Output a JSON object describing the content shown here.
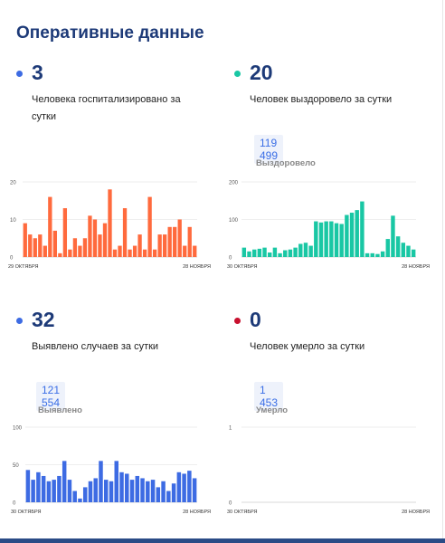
{
  "title": "Оперативные данные",
  "colors": {
    "orange": "#ff6a3d",
    "teal": "#19c7a4",
    "blue": "#3d6be3",
    "red": "#c8102e",
    "navy": "#1d3a78"
  },
  "stats": {
    "hosp": {
      "value": "3",
      "label": "Человека госпитализировано за сутки"
    },
    "recovered": {
      "value": "20",
      "label": "Человек выздоровело за сутки",
      "total": "119 499",
      "total_label": "Выздоровело"
    },
    "cases": {
      "value": "32",
      "label": "Выявлено случаев за сутки",
      "total": "121 554",
      "total_label": "Выявлено"
    },
    "deaths": {
      "value": "0",
      "label": "Человек умерло за сутки",
      "total": "1 453",
      "total_label": "Умерло"
    }
  },
  "chart_data": [
    {
      "type": "bar",
      "name": "hosp",
      "x_start": "29 ОКТЯБРЯ",
      "x_end": "28 НОЯБРЯ",
      "ylim": [
        0,
        20
      ],
      "yticks": [
        0,
        10,
        20
      ],
      "values": [
        9,
        6,
        5,
        6,
        3,
        16,
        7,
        1,
        13,
        2,
        5,
        3,
        5,
        11,
        10,
        6,
        9,
        18,
        2,
        3,
        13,
        2,
        3,
        6,
        2,
        16,
        2,
        6,
        6,
        8,
        8,
        10,
        3,
        8,
        3
      ]
    },
    {
      "type": "bar",
      "name": "recovered",
      "x_start": "30 ОКТЯБРЯ",
      "x_end": "28 НОЯБРЯ",
      "ylim": [
        0,
        200
      ],
      "yticks": [
        0,
        100,
        200
      ],
      "values": [
        25,
        15,
        20,
        22,
        25,
        12,
        25,
        10,
        18,
        20,
        25,
        35,
        38,
        30,
        95,
        92,
        95,
        95,
        90,
        88,
        112,
        118,
        125,
        148,
        10,
        10,
        8,
        15,
        48,
        110,
        55,
        38,
        30,
        20
      ]
    },
    {
      "type": "bar",
      "name": "cases",
      "x_start": "30 ОКТЯБРЯ",
      "x_end": "28 НОЯБРЯ",
      "ylim": [
        0,
        100
      ],
      "yticks": [
        0,
        50,
        100
      ],
      "values": [
        43,
        30,
        40,
        35,
        28,
        30,
        35,
        55,
        30,
        15,
        5,
        20,
        28,
        32,
        55,
        30,
        28,
        55,
        40,
        38,
        30,
        35,
        32,
        28,
        30,
        20,
        28,
        15,
        25,
        40,
        38,
        42,
        32
      ]
    },
    {
      "type": "bar",
      "name": "deaths",
      "x_start": "30 ОКТЯБРЯ",
      "x_end": "28 НОЯБРЯ",
      "ylim": [
        0,
        1
      ],
      "yticks": [
        0,
        1
      ],
      "values": []
    }
  ]
}
